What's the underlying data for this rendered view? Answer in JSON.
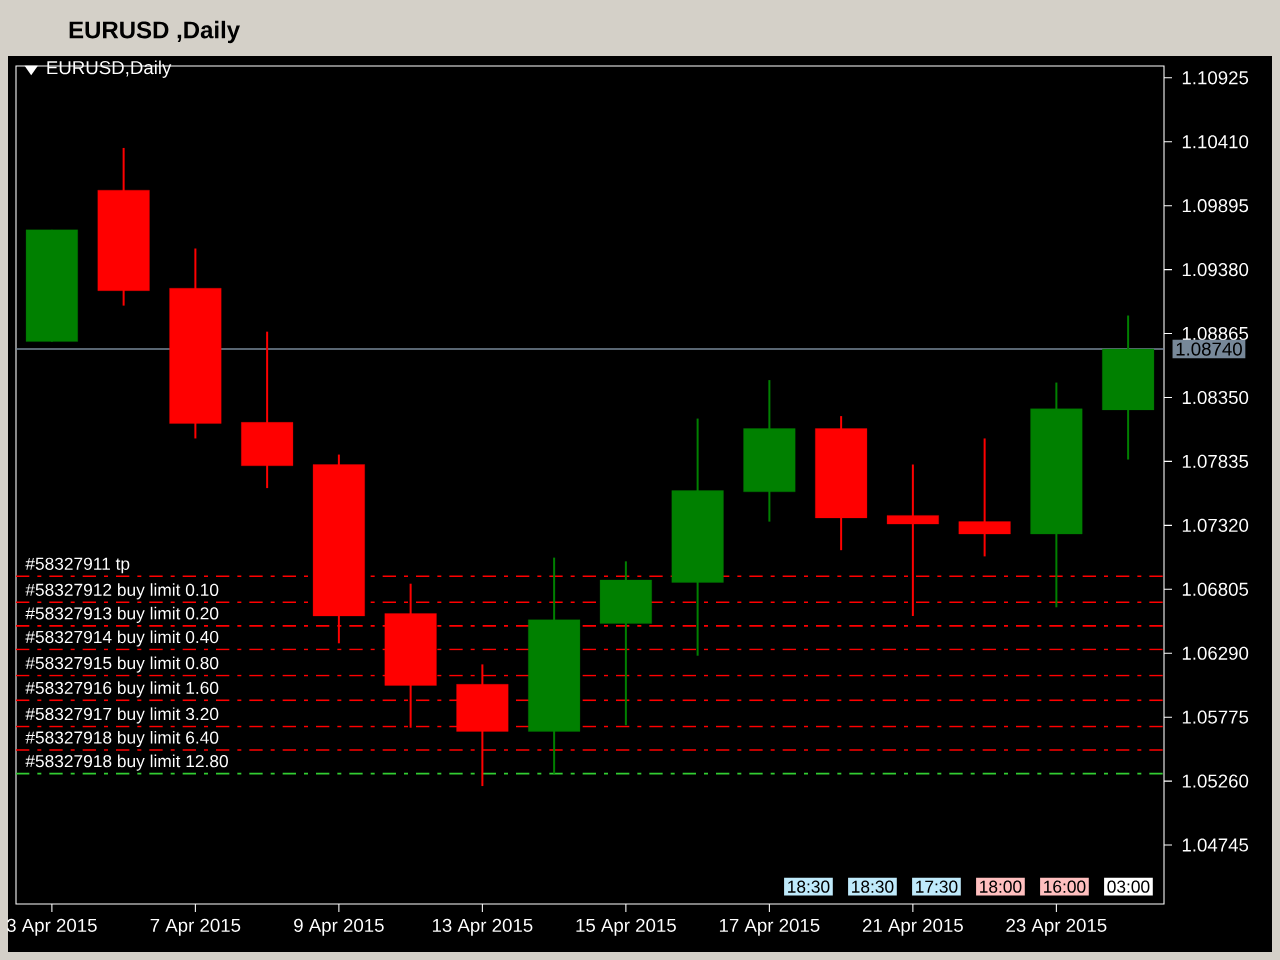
{
  "chart_data": {
    "type": "candlestick",
    "title": "EURUSD,Daily",
    "subtitle": "EURUSD ,Daily",
    "categories": [
      "3 Apr 2015",
      null,
      "7 Apr 2015",
      null,
      "9 Apr 2015",
      null,
      "13 Apr 2015",
      null,
      "15 Apr 2015",
      null,
      "17 Apr 2015",
      null,
      "21 Apr 2015",
      null,
      "23 Apr 2015",
      null
    ],
    "ohlc": [
      [
        1.088,
        1.097,
        1.088,
        1.097
      ],
      [
        1.1002,
        1.1036,
        1.0909,
        1.0921
      ],
      [
        1.0923,
        1.0955,
        1.0802,
        1.0814
      ],
      [
        1.0815,
        1.0888,
        1.0762,
        1.078
      ],
      [
        1.0781,
        1.0789,
        1.0637,
        1.0659
      ],
      [
        1.0661,
        1.0685,
        1.0569,
        1.0603
      ],
      [
        1.0604,
        1.062,
        1.0522,
        1.0566
      ],
      [
        1.0566,
        1.0706,
        1.0532,
        1.0656
      ],
      [
        1.0653,
        1.0703,
        1.0571,
        1.0688
      ],
      [
        1.0686,
        1.0818,
        1.0627,
        1.076
      ],
      [
        1.0759,
        1.0849,
        1.0735,
        1.081
      ],
      [
        1.081,
        1.082,
        1.0712,
        1.0738
      ],
      [
        1.074,
        1.0781,
        1.0659,
        1.0733
      ],
      [
        1.0735,
        1.0802,
        1.0707,
        1.0725
      ],
      [
        1.0725,
        1.0847,
        1.0666,
        1.0826
      ],
      [
        1.0825,
        1.0901,
        1.0785,
        1.0874
      ]
    ],
    "colors": [
      "#008000",
      "#ff0000",
      "#ff0000",
      "#ff0000",
      "#ff0000",
      "#ff0000",
      "#ff0000",
      "#008000",
      "#008000",
      "#008000",
      "#008000",
      "#ff0000",
      "#ff0000",
      "#ff0000",
      "#008000",
      "#008000"
    ],
    "ylim": [
      1.0427,
      1.1102
    ],
    "yticks": [
      {
        "value": 1.10925,
        "label": "1.10925"
      },
      {
        "value": 1.1041,
        "label": "1.10410"
      },
      {
        "value": 1.09895,
        "label": "1.09895"
      },
      {
        "value": 1.0938,
        "label": "1.09380"
      },
      {
        "value": 1.08865,
        "label": "1.08865"
      },
      {
        "value": 1.0835,
        "label": "1.08350"
      },
      {
        "value": 1.07835,
        "label": "1.07835"
      },
      {
        "value": 1.0732,
        "label": "1.07320"
      },
      {
        "value": 1.06805,
        "label": "1.06805"
      },
      {
        "value": 1.0629,
        "label": "1.06290"
      },
      {
        "value": 1.05775,
        "label": "1.05775"
      },
      {
        "value": 1.0526,
        "label": "1.05260"
      },
      {
        "value": 1.04745,
        "label": "1.04745"
      }
    ],
    "ref_lines": [
      {
        "axis": "y",
        "value": 1.0874,
        "label": "1.08740",
        "color": "#778899",
        "line_style": "solid"
      },
      {
        "axis": "y",
        "value": 1.0691,
        "label": "#58327911 tp",
        "color": "#ff0000",
        "line_style": "dashed"
      },
      {
        "axis": "y",
        "value": 1.067,
        "label": "#58327912 buy limit 0.10",
        "color": "#ff0000",
        "line_style": "dashed"
      },
      {
        "axis": "y",
        "value": 1.0651,
        "label": "#58327913 buy limit 0.20",
        "color": "#ff0000",
        "line_style": "dashed"
      },
      {
        "axis": "y",
        "value": 1.0632,
        "label": "#58327914 buy limit 0.40",
        "color": "#ff0000",
        "line_style": "dashed"
      },
      {
        "axis": "y",
        "value": 1.0611,
        "label": "#58327915 buy limit 0.80",
        "color": "#ff0000",
        "line_style": "dashed"
      },
      {
        "axis": "y",
        "value": 1.0591,
        "label": "#58327916 buy limit 1.60",
        "color": "#ff0000",
        "line_style": "dashed"
      },
      {
        "axis": "y",
        "value": 1.057,
        "label": "#58327917 buy limit 3.20",
        "color": "#ff0000",
        "line_style": "dashed"
      },
      {
        "axis": "y",
        "value": 1.0551,
        "label": "#58327918 buy limit 6.40",
        "color": "#ff0000",
        "line_style": "dashed"
      },
      {
        "axis": "y",
        "value": 1.0532,
        "label": "#58327918 buy limit 12.80",
        "color": "#32cd32",
        "line_style": "dashed"
      }
    ],
    "annotations": [
      "18:30",
      "18:30",
      "17:30",
      "18:00",
      "16:00",
      "03:00"
    ]
  }
}
